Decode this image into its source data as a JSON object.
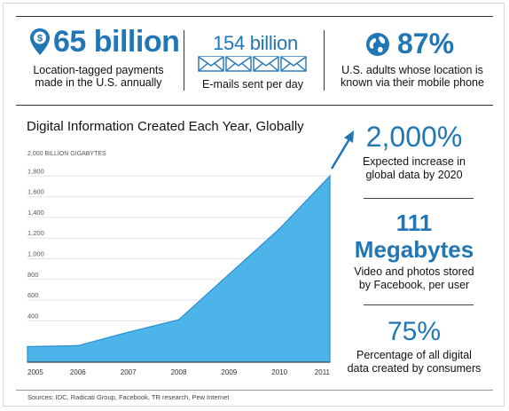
{
  "stats_top": [
    {
      "value": "65 billion",
      "caption_line1": "Location-tagged payments",
      "caption_line2": "made in the U.S. annually",
      "icon": "location-pin-dollar-icon"
    },
    {
      "value": "154 billion",
      "caption_line1": "E-mails sent per day",
      "caption_line2": "",
      "icon": "envelope-icon"
    },
    {
      "value": "87%",
      "caption_line1": "U.S. adults whose location is",
      "caption_line2": "known via their mobile phone",
      "icon": "globe-icon"
    }
  ],
  "stats_right": [
    {
      "value": "2,000%",
      "value_line2": "",
      "caption_line1": "Expected increase in",
      "caption_line2": "global data by 2020"
    },
    {
      "value": "111",
      "value_line2": "Megabytes",
      "caption_line1": "Video and photos stored",
      "caption_line2": "by Facebook, per user"
    },
    {
      "value": "75%",
      "value_line2": "",
      "caption_line1": "Percentage of all digital",
      "caption_line2": "data created by consumers"
    }
  ],
  "sources": "Sources: IDC, Radicati Group, Facebook, TR research, Pew Internet",
  "colors": {
    "accent": "#2176b5",
    "area_fill": "#4db4ea",
    "area_stroke": "#2a8fd0"
  },
  "chart_data": {
    "type": "area",
    "title": "Digital Information Created Each Year, Globally",
    "ylabel": "2,000 BILLION GIGABYTES",
    "x": [
      "2005",
      "2006",
      "2007",
      "2008",
      "2009",
      "2010",
      "2011"
    ],
    "values": [
      150,
      160,
      290,
      410,
      850,
      1290,
      1800
    ],
    "ylim": [
      0,
      2000
    ],
    "ytick_labels": [
      {
        "value": 1800,
        "label": "1,800"
      },
      {
        "value": 1600,
        "label": "1,600"
      },
      {
        "value": 1400,
        "label": "1,400"
      },
      {
        "value": 1200,
        "label": "1,200"
      },
      {
        "value": 1000,
        "label": "1,000"
      },
      {
        "value": 800,
        "label": "800"
      },
      {
        "value": 600,
        "label": "600"
      },
      {
        "value": 400,
        "label": "400"
      }
    ],
    "xtick_labels": [
      "2005",
      "2006",
      "2007",
      "2008",
      "2009",
      "2010",
      "2011"
    ],
    "grid": true
  }
}
